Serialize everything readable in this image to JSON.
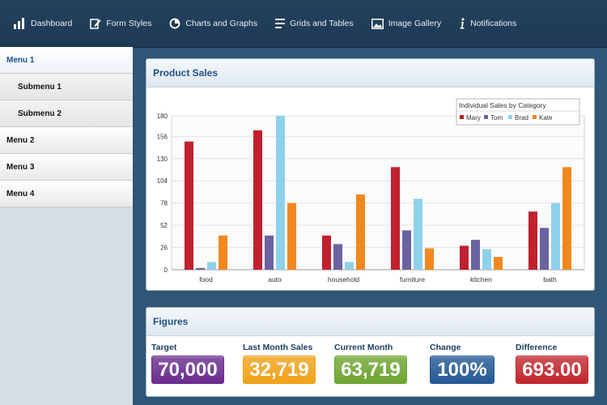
{
  "nav": {
    "items": [
      {
        "label": "Dashboard",
        "icon": "bar-chart-icon"
      },
      {
        "label": "Form Styles",
        "icon": "edit-icon"
      },
      {
        "label": "Charts and Graphs",
        "icon": "pie-chart-icon"
      },
      {
        "label": "Grids and Tables",
        "icon": "list-icon"
      },
      {
        "label": "Image Gallery",
        "icon": "image-icon"
      },
      {
        "label": "Notifications",
        "icon": "info-icon"
      }
    ]
  },
  "sidebar": {
    "items": [
      {
        "label": "Menu 1",
        "level": 0,
        "active": true
      },
      {
        "label": "Submenu 1",
        "level": 1,
        "active": false
      },
      {
        "label": "Submenu 2",
        "level": 1,
        "active": false
      },
      {
        "label": "Menu 2",
        "level": 0,
        "active": false
      },
      {
        "label": "Menu 3",
        "level": 0,
        "active": false
      },
      {
        "label": "Menu 4",
        "level": 0,
        "active": false
      }
    ]
  },
  "sales_panel": {
    "title": "Product Sales"
  },
  "figures_panel": {
    "title": "Figures",
    "items": [
      {
        "label": "Target",
        "value": "70,000",
        "color": "#6a2d8f"
      },
      {
        "label": "Last Month Sales",
        "value": "32,719",
        "color": "#f0a21a"
      },
      {
        "label": "Current Month",
        "value": "63,719",
        "color": "#6ea531"
      },
      {
        "label": "Change",
        "value": "100%",
        "color": "#245a93"
      },
      {
        "label": "Difference",
        "value": "693.00",
        "color": "#c1272d"
      }
    ]
  },
  "chart_data": {
    "type": "bar",
    "categories": [
      "food",
      "auto",
      "household",
      "furniture",
      "kitchen",
      "bath"
    ],
    "series": [
      {
        "name": "Mary",
        "color": "#c1202e",
        "values": [
          150,
          163,
          40,
          120,
          28,
          68
        ]
      },
      {
        "name": "Tom",
        "color": "#6a63a0",
        "values": [
          2,
          40,
          30,
          46,
          35,
          49
        ]
      },
      {
        "name": "Brad",
        "color": "#8ed1ea",
        "values": [
          9,
          180,
          9,
          83,
          24,
          78
        ]
      },
      {
        "name": "Kate",
        "color": "#f0881f",
        "values": [
          40,
          78,
          88,
          25,
          15,
          120
        ]
      }
    ],
    "legend_title": "Individual Sales by Category",
    "legend_position": "top-right",
    "ylim": [
      0,
      180
    ],
    "yticks": [
      0,
      26,
      52,
      78,
      104,
      130,
      156,
      180
    ],
    "grid": true
  }
}
